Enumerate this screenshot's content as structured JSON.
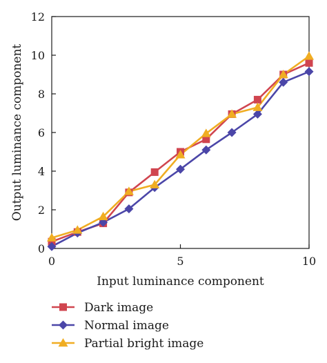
{
  "chart_data": {
    "type": "line",
    "xlabel": "Input luminance component",
    "ylabel": "Output luminance component",
    "xlim": [
      0,
      10
    ],
    "ylim": [
      0,
      12
    ],
    "x_ticks": [
      "0",
      "5",
      "10"
    ],
    "y_ticks": [
      "0",
      "2",
      "4",
      "6",
      "8",
      "10",
      "12"
    ],
    "x_tick_values": [
      0,
      5,
      10
    ],
    "y_tick_values": [
      0,
      2,
      4,
      6,
      8,
      10,
      12
    ],
    "grid": false,
    "legend_position": "bottom",
    "series": [
      {
        "name": "Dark image",
        "color": "#d0454f",
        "marker": "square",
        "x": [
          0,
          1,
          2,
          3,
          4,
          5,
          6,
          7,
          8,
          9,
          10
        ],
        "y": [
          0.35,
          0.85,
          1.3,
          2.9,
          3.95,
          5.0,
          5.65,
          6.95,
          7.7,
          9.0,
          9.6
        ]
      },
      {
        "name": "Normal image",
        "color": "#4b46a8",
        "marker": "diamond",
        "x": [
          0,
          1,
          2,
          3,
          4,
          5,
          6,
          7,
          8,
          9,
          10
        ],
        "y": [
          0.1,
          0.8,
          1.35,
          2.05,
          3.15,
          4.1,
          5.1,
          6.0,
          6.95,
          8.6,
          9.15
        ]
      },
      {
        "name": "Partial bright image",
        "color": "#f0ad22",
        "marker": "triangle",
        "x": [
          0,
          1,
          2,
          3,
          4,
          5,
          6,
          7,
          8,
          9,
          10
        ],
        "y": [
          0.55,
          0.95,
          1.65,
          2.95,
          3.3,
          4.85,
          5.95,
          6.95,
          7.3,
          9.0,
          9.95
        ]
      }
    ]
  }
}
